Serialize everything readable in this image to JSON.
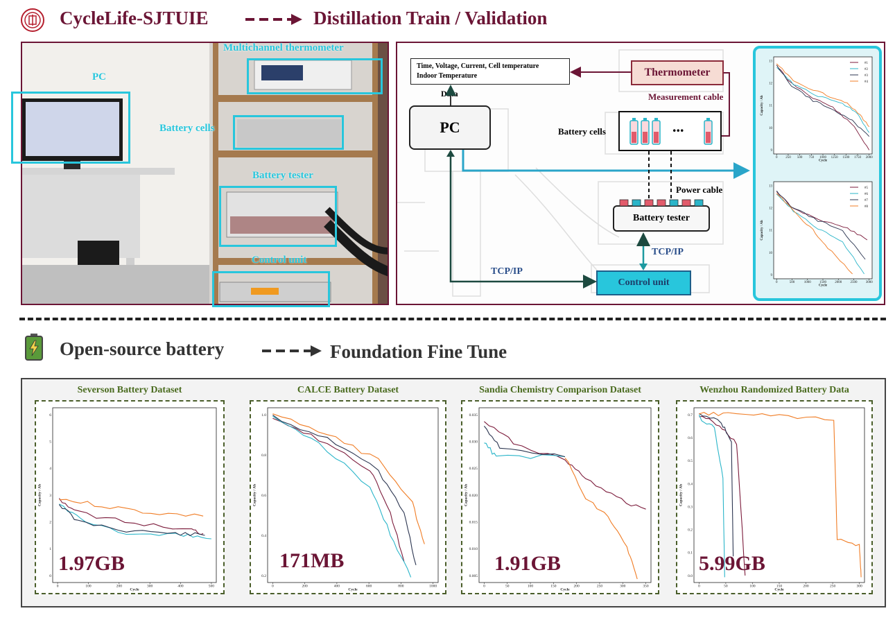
{
  "top_header": {
    "title": "CycleLife-SJTUIE",
    "target": "Distillation Train / Validation"
  },
  "photo": {
    "labels": {
      "pc": "PC",
      "thermometer": "Multichannel thermometer",
      "cells": "Battery cells",
      "tester": "Battery tester",
      "control": "Control unit"
    }
  },
  "schematic": {
    "data_box_line1": "Time, Voltage, Current, Cell temperature",
    "data_box_line2": "Indoor Temperature",
    "data_label": "Data",
    "pc": "PC",
    "thermometer": "Thermometer",
    "measurement_cable": "Measurement cable",
    "battery_cells": "Battery cells",
    "ellipsis": "...",
    "power_cable": "Power cable",
    "battery_tester": "Battery tester",
    "tcpip_left": "TCP/IP",
    "tcpip_right": "TCP/IP",
    "control_unit": "Control unit"
  },
  "mini_charts": {
    "ylabel": "Capacity / Ah",
    "xlabel": "Cycle",
    "top": {
      "legend": [
        "#1",
        "#2",
        "#3",
        "#4"
      ],
      "xticks": [
        "0",
        "250",
        "500",
        "750",
        "1000",
        "1250",
        "1500",
        "1750",
        "2000"
      ],
      "yticks": [
        "13",
        "12",
        "11",
        "10",
        "9"
      ]
    },
    "bottom": {
      "legend": [
        "#5",
        "#6",
        "#7",
        "#8"
      ],
      "xticks": [
        "0",
        "500",
        "1000",
        "1500",
        "2000",
        "2500",
        "3000"
      ],
      "yticks": [
        "13",
        "12",
        "11",
        "10",
        "9"
      ]
    }
  },
  "bottom_header": {
    "title": "Open-source battery",
    "target": "Foundation Fine Tune"
  },
  "datasets": [
    {
      "title": "Severson Battery Dataset",
      "size": "1.97GB",
      "xticks": [
        "0",
        "100",
        "200",
        "300",
        "400",
        "500"
      ],
      "yticks": [
        "6",
        "5",
        "4",
        "3",
        "2",
        "1",
        "0"
      ]
    },
    {
      "title": "CALCE Battery Dataset",
      "size": "171MB",
      "xticks": [
        "0",
        "200",
        "400",
        "600",
        "800",
        "1000"
      ],
      "yticks": [
        "1.0",
        "0.8",
        "0.6",
        "0.4",
        "0.2"
      ]
    },
    {
      "title": "Sandia Chemistry Comparison Dataset",
      "size": "1.91GB",
      "xticks": [
        "0",
        "50",
        "100",
        "150",
        "200",
        "250",
        "300",
        "350"
      ],
      "yticks": [
        "0.035",
        "0.030",
        "0.025",
        "0.020",
        "0.015",
        "0.010",
        "0.005"
      ]
    },
    {
      "title": "Wenzhou Randomized Battery Data",
      "size": "5.99GB",
      "xticks": [
        "0",
        "50",
        "100",
        "150",
        "200",
        "250",
        "300"
      ],
      "yticks": [
        "0.7",
        "0.6",
        "0.5",
        "0.4",
        "0.3",
        "0.2",
        "0.1",
        "0.0"
      ]
    }
  ],
  "dataset_axis": {
    "ylabel": "Capacity / Ah",
    "xlabel": "Cycle"
  },
  "colors": {
    "accent": "#6b1535",
    "cyan": "#28c6dc",
    "dataset_green": "#4a6b1f",
    "series": [
      "#7b1a3a",
      "#2ab5c9",
      "#2b3550",
      "#f07c24"
    ]
  }
}
